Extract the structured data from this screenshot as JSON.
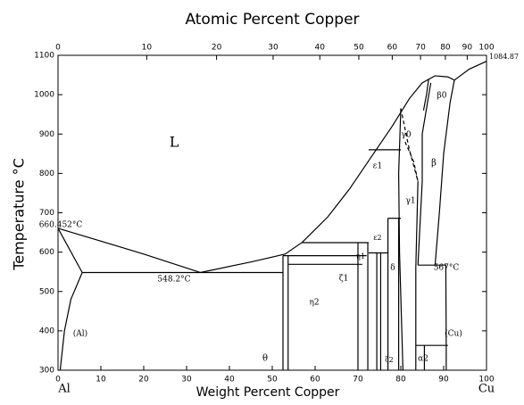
{
  "chart_data": {
    "type": "phase-diagram",
    "title": "Atomic Percent Copper",
    "x_label": "Weight Percent Copper",
    "y_label": "Temperature °C",
    "xlim": [
      0,
      100
    ],
    "ylim": [
      300,
      1100
    ],
    "xticks": [
      0,
      10,
      20,
      30,
      40,
      50,
      60,
      70,
      80,
      90,
      100
    ],
    "yticks": [
      300,
      400,
      500,
      600,
      700,
      800,
      900,
      1000,
      1100
    ],
    "x2ticks": [
      {
        "value": 0,
        "label": "0"
      },
      {
        "value": 20.7,
        "label": "10"
      },
      {
        "value": 37,
        "label": "20"
      },
      {
        "value": 50.2,
        "label": "30"
      },
      {
        "value": 61.1,
        "label": "40"
      },
      {
        "value": 70.2,
        "label": "50"
      },
      {
        "value": 78,
        "label": "60"
      },
      {
        "value": 84.6,
        "label": "70"
      },
      {
        "value": 90.4,
        "label": "80"
      },
      {
        "value": 95.5,
        "label": "90"
      },
      {
        "value": 100,
        "label": "100"
      }
    ],
    "color": "#000000",
    "boundaries": [
      {
        "x": [
          0,
          5.65
        ],
        "y": [
          660.452,
          548.2
        ]
      },
      {
        "x": [
          0.5,
          1.5,
          3,
          5.65
        ],
        "y": [
          300,
          400,
          480,
          548.2
        ]
      },
      {
        "x": [
          0,
          10,
          20,
          33.2
        ],
        "y": [
          660.452,
          628,
          595,
          548.2
        ]
      },
      {
        "x": [
          5.65,
          52.5
        ],
        "y": [
          548.2,
          548.2
        ]
      },
      {
        "x": [
          33.2,
          45,
          53,
          57,
          63,
          68,
          73,
          78,
          82,
          85,
          88,
          91,
          92.5,
          96,
          100
        ],
        "y": [
          548.2,
          575,
          595,
          625,
          690,
          760,
          840,
          920,
          990,
          1030,
          1048,
          1045,
          1037,
          1065,
          1084.87
        ]
      },
      {
        "x": [
          52.5,
          52.5
        ],
        "y": [
          300,
          591
        ]
      },
      {
        "x": [
          53.7,
          53.7
        ],
        "y": [
          300,
          591
        ]
      },
      {
        "x": [
          52.5,
          72
        ],
        "y": [
          591,
          591
        ]
      },
      {
        "x": [
          53.7,
          71
        ],
        "y": [
          569,
          569
        ]
      },
      {
        "x": [
          57,
          72.5
        ],
        "y": [
          624,
          624
        ]
      },
      {
        "x": [
          70,
          70
        ],
        "y": [
          300,
          624
        ]
      },
      {
        "x": [
          72.3,
          72.3
        ],
        "y": [
          300,
          624
        ]
      },
      {
        "x": [
          74.4,
          74.4
        ],
        "y": [
          300,
          598
        ]
      },
      {
        "x": [
          75.3,
          75.3
        ],
        "y": [
          300,
          598
        ]
      },
      {
        "x": [
          72.5,
          77
        ],
        "y": [
          598,
          598
        ]
      },
      {
        "x": [
          77,
          77
        ],
        "y": [
          300,
          686
        ]
      },
      {
        "x": [
          79.5,
          79.5
        ],
        "y": [
          300,
          686
        ]
      },
      {
        "x": [
          77,
          80
        ],
        "y": [
          686,
          686
        ]
      },
      {
        "x": [
          80.5,
          79.7,
          79.5,
          80
        ],
        "y": [
          300,
          600,
          800,
          965
        ]
      },
      {
        "x": [
          83.5,
          83.5,
          84
        ],
        "y": [
          300,
          560,
          780
        ]
      },
      {
        "x": [
          84,
          90.5
        ],
        "y": [
          567,
          567
        ]
      },
      {
        "x": [
          84,
          85,
          85,
          87
        ],
        "y": [
          567,
          780,
          900,
          1030
        ]
      },
      {
        "x": [
          88,
          89,
          90,
          91.5,
          92.5
        ],
        "y": [
          567,
          700,
          850,
          980,
          1037
        ]
      },
      {
        "x": [
          72.5,
          80
        ],
        "y": [
          860,
          860
        ]
      },
      {
        "x": [
          80,
          82,
          84
        ],
        "y": [
          965,
          860,
          780
        ],
        "dashed": true
      },
      {
        "x": [
          81,
          83,
          84
        ],
        "y": [
          880,
          830,
          780
        ],
        "dashed": true
      },
      {
        "x": [
          90.6,
          90.6,
          90.5
        ],
        "y": [
          300,
          363,
          567
        ]
      },
      {
        "x": [
          83.5,
          91
        ],
        "y": [
          363,
          363
        ]
      },
      {
        "x": [
          85.5,
          85.5
        ],
        "y": [
          300,
          363
        ]
      },
      {
        "x": [
          85.3,
          86,
          86.5
        ],
        "y": [
          960,
          1000,
          1040
        ]
      }
    ],
    "annotations": [
      "L",
      "660.452°C",
      "548.2°C",
      "567°C",
      "1084.87",
      "(Al)",
      "(Cu)",
      "θ",
      "η2",
      "η1",
      "ζ1",
      "ζ2",
      "ε1",
      "ε2",
      "δ",
      "γ0",
      "γ1",
      "β0",
      "β",
      "α2",
      "Al",
      "Cu"
    ]
  }
}
